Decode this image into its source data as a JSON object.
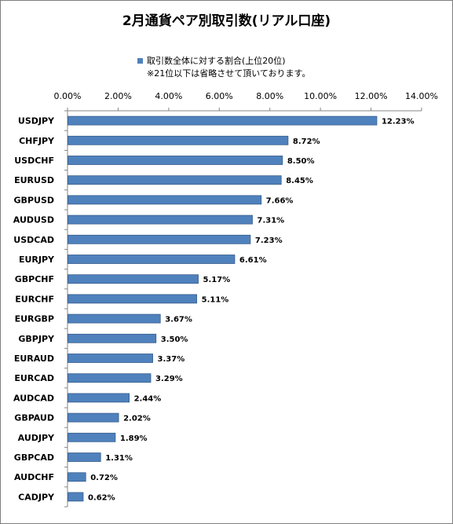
{
  "chart_data": {
    "type": "bar",
    "orientation": "horizontal",
    "title": "2月通貨ペア別取引数(リアル口座)",
    "legend": {
      "label": "取引数全体に対する割合(上位20位)",
      "note": "※21位以下は省略させて頂いております。",
      "placement": "top"
    },
    "categories": [
      "USDJPY",
      "CHFJPY",
      "USDCHF",
      "EURUSD",
      "GBPUSD",
      "AUDUSD",
      "USDCAD",
      "EURJPY",
      "GBPCHF",
      "EURCHF",
      "EURGBP",
      "GBPJPY",
      "EURAUD",
      "EURCAD",
      "AUDCAD",
      "GBPAUD",
      "AUDJPY",
      "GBPCAD",
      "AUDCHF",
      "CADJPY"
    ],
    "values": [
      12.23,
      8.72,
      8.5,
      8.45,
      7.66,
      7.31,
      7.23,
      6.61,
      5.17,
      5.11,
      3.67,
      3.5,
      3.37,
      3.29,
      2.44,
      2.02,
      1.89,
      1.31,
      0.72,
      0.62
    ],
    "value_labels": [
      "12.23%",
      "8.72%",
      "8.50%",
      "8.45%",
      "7.66%",
      "7.31%",
      "7.23%",
      "6.61%",
      "5.17%",
      "5.11%",
      "3.67%",
      "3.50%",
      "3.37%",
      "3.29%",
      "2.44%",
      "2.02%",
      "1.89%",
      "1.31%",
      "0.72%",
      "0.62%"
    ],
    "xaxis_position": "top",
    "xlim": [
      0,
      14
    ],
    "xticks": [
      0,
      2,
      4,
      6,
      8,
      10,
      12,
      14
    ],
    "xtick_labels": [
      "0.00%",
      "2.00%",
      "4.00%",
      "6.00%",
      "8.00%",
      "10.00%",
      "12.00%",
      "14.00%"
    ],
    "grid": false,
    "bar_color": "#4f81bd",
    "bar_edge_color": "#385d8a"
  }
}
